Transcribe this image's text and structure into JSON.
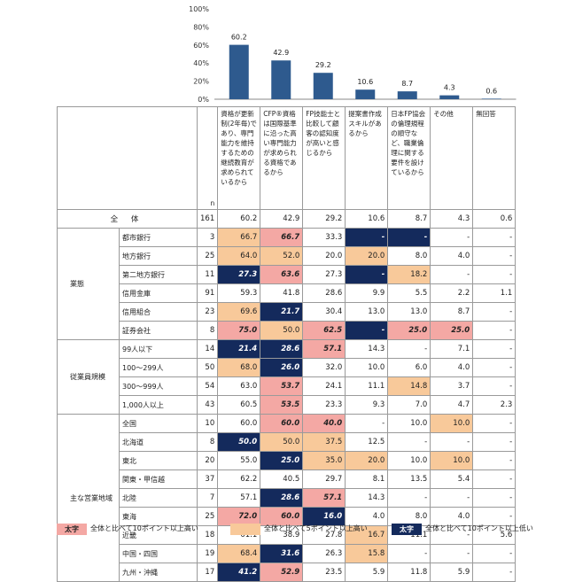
{
  "chart_data": {
    "type": "bar",
    "categories": [
      "資格が更新制(2年毎)であり、専門能力を維持するための継続教育が求められているから",
      "CFP®資格は国際基準に沿った高い専門能力が求められる資格であるから",
      "FP技能士と比較して顧客の認知度が高いと感じるから",
      "提案書作成スキルがあるから",
      "日本FP協会の倫理規程の順守など、職業倫理に関する要件を設けているから",
      "その他",
      "無回答"
    ],
    "values": [
      60.2,
      42.9,
      29.2,
      10.6,
      8.7,
      4.3,
      0.6
    ],
    "ylim": [
      0,
      100
    ],
    "yticks": [
      "0%",
      "20%",
      "40%",
      "60%",
      "80%",
      "100%"
    ],
    "bar_color": "#2e5a8e"
  },
  "table": {
    "n_label": "n",
    "columns": [
      "資格が更新制(2年毎)であり、専門能力を維持するための継続教育が求められているから",
      "CFP®資格は国際基準に沿った高い専門能力が求められる資格であるから",
      "FP技能士と比較して顧客の認知度が高いと感じるから",
      "提案書作成スキルがあるから",
      "日本FP協会の倫理規程の順守など、職業倫理に関する要件を設けているから",
      "その他",
      "無回答"
    ],
    "total": {
      "label": "全 体",
      "n": "161",
      "values": [
        "60.2",
        "42.9",
        "29.2",
        "10.6",
        "8.7",
        "4.3",
        "0.6"
      ]
    },
    "groups": [
      {
        "label": "業態",
        "rows": [
          {
            "label": "都市銀行",
            "n": "3",
            "values": [
              "66.7",
              "66.7",
              "33.3",
              "-",
              "-",
              "-",
              "-"
            ],
            "hl": [
              "o",
              "r",
              "",
              "n",
              "n",
              "",
              ""
            ]
          },
          {
            "label": "地方銀行",
            "n": "25",
            "values": [
              "64.0",
              "52.0",
              "20.0",
              "20.0",
              "8.0",
              "4.0",
              "-"
            ],
            "hl": [
              "o",
              "o",
              "",
              "o",
              "",
              "",
              ""
            ]
          },
          {
            "label": "第二地方銀行",
            "n": "11",
            "values": [
              "27.3",
              "63.6",
              "27.3",
              "-",
              "18.2",
              "-",
              "-"
            ],
            "hl": [
              "n",
              "r",
              "",
              "n",
              "o",
              "",
              ""
            ]
          },
          {
            "label": "信用金庫",
            "n": "91",
            "values": [
              "59.3",
              "41.8",
              "28.6",
              "9.9",
              "5.5",
              "2.2",
              "1.1"
            ],
            "hl": [
              "",
              "",
              "",
              "",
              "",
              "",
              ""
            ]
          },
          {
            "label": "信用組合",
            "n": "23",
            "values": [
              "69.6",
              "21.7",
              "30.4",
              "13.0",
              "13.0",
              "8.7",
              "-"
            ],
            "hl": [
              "o",
              "n",
              "",
              "",
              "",
              "",
              ""
            ]
          },
          {
            "label": "証券会社",
            "n": "8",
            "values": [
              "75.0",
              "50.0",
              "62.5",
              "-",
              "25.0",
              "25.0",
              "-"
            ],
            "hl": [
              "r",
              "o",
              "r",
              "n",
              "r",
              "r",
              ""
            ]
          }
        ]
      },
      {
        "label": "従業員規模",
        "rows": [
          {
            "label": "99人以下",
            "n": "14",
            "values": [
              "21.4",
              "28.6",
              "57.1",
              "14.3",
              "-",
              "7.1",
              "-"
            ],
            "hl": [
              "n",
              "n",
              "r",
              "",
              "",
              "",
              ""
            ]
          },
          {
            "label": "100～299人",
            "n": "50",
            "values": [
              "68.0",
              "26.0",
              "32.0",
              "10.0",
              "6.0",
              "4.0",
              "-"
            ],
            "hl": [
              "o",
              "n",
              "",
              "",
              "",
              "",
              ""
            ]
          },
          {
            "label": "300～999人",
            "n": "54",
            "values": [
              "63.0",
              "53.7",
              "24.1",
              "11.1",
              "14.8",
              "3.7",
              "-"
            ],
            "hl": [
              "",
              "r",
              "",
              "",
              "o",
              "",
              ""
            ]
          },
          {
            "label": "1,000人以上",
            "n": "43",
            "values": [
              "60.5",
              "53.5",
              "23.3",
              "9.3",
              "7.0",
              "4.7",
              "2.3"
            ],
            "hl": [
              "",
              "r",
              "",
              "",
              "",
              "",
              ""
            ]
          }
        ]
      },
      {
        "label": "主な営業地域",
        "rows": [
          {
            "label": "全国",
            "n": "10",
            "values": [
              "60.0",
              "60.0",
              "40.0",
              "-",
              "10.0",
              "10.0",
              "-"
            ],
            "hl": [
              "",
              "r",
              "r",
              "",
              "",
              "o",
              ""
            ]
          },
          {
            "label": "北海道",
            "n": "8",
            "values": [
              "50.0",
              "50.0",
              "37.5",
              "12.5",
              "-",
              "-",
              "-"
            ],
            "hl": [
              "n",
              "o",
              "o",
              "",
              "",
              "",
              ""
            ]
          },
          {
            "label": "東北",
            "n": "20",
            "values": [
              "55.0",
              "25.0",
              "35.0",
              "20.0",
              "10.0",
              "10.0",
              "-"
            ],
            "hl": [
              "",
              "n",
              "o",
              "o",
              "",
              "o",
              ""
            ]
          },
          {
            "label": "関東・甲信越",
            "n": "37",
            "values": [
              "62.2",
              "40.5",
              "29.7",
              "8.1",
              "13.5",
              "5.4",
              "-"
            ],
            "hl": [
              "",
              "",
              "",
              "",
              "",
              "",
              ""
            ]
          },
          {
            "label": "北陸",
            "n": "7",
            "values": [
              "57.1",
              "28.6",
              "57.1",
              "14.3",
              "-",
              "-",
              "-"
            ],
            "hl": [
              "",
              "n",
              "r",
              "",
              "",
              "",
              ""
            ]
          },
          {
            "label": "東海",
            "n": "25",
            "values": [
              "72.0",
              "60.0",
              "16.0",
              "4.0",
              "8.0",
              "4.0",
              "-"
            ],
            "hl": [
              "r",
              "r",
              "n",
              "",
              "",
              "",
              ""
            ]
          },
          {
            "label": "近畿",
            "n": "18",
            "values": [
              "61.1",
              "38.9",
              "27.8",
              "16.7",
              "11.1",
              "-",
              "5.6"
            ],
            "hl": [
              "",
              "",
              "",
              "o",
              "",
              "",
              ""
            ]
          },
          {
            "label": "中国・四国",
            "n": "19",
            "values": [
              "68.4",
              "31.6",
              "26.3",
              "15.8",
              "-",
              "-",
              "-"
            ],
            "hl": [
              "o",
              "n",
              "",
              "o",
              "",
              "",
              ""
            ]
          },
          {
            "label": "九州・沖縄",
            "n": "17",
            "values": [
              "41.2",
              "52.9",
              "23.5",
              "5.9",
              "11.8",
              "5.9",
              "-"
            ],
            "hl": [
              "n",
              "r",
              "",
              "",
              "",
              "",
              ""
            ]
          }
        ]
      }
    ]
  },
  "legend": {
    "items": [
      {
        "swatch_text": "太字",
        "text": "全体と比べて10ポイント以上高い",
        "color": "#f4a8a4"
      },
      {
        "swatch_text": "",
        "text": "全体と比べて5ポイント以上高い",
        "color": "#f8c99a"
      },
      {
        "swatch_text": "太字",
        "text": "全体と比べて10ポイント以上低い",
        "color": "#142a5c"
      }
    ]
  }
}
